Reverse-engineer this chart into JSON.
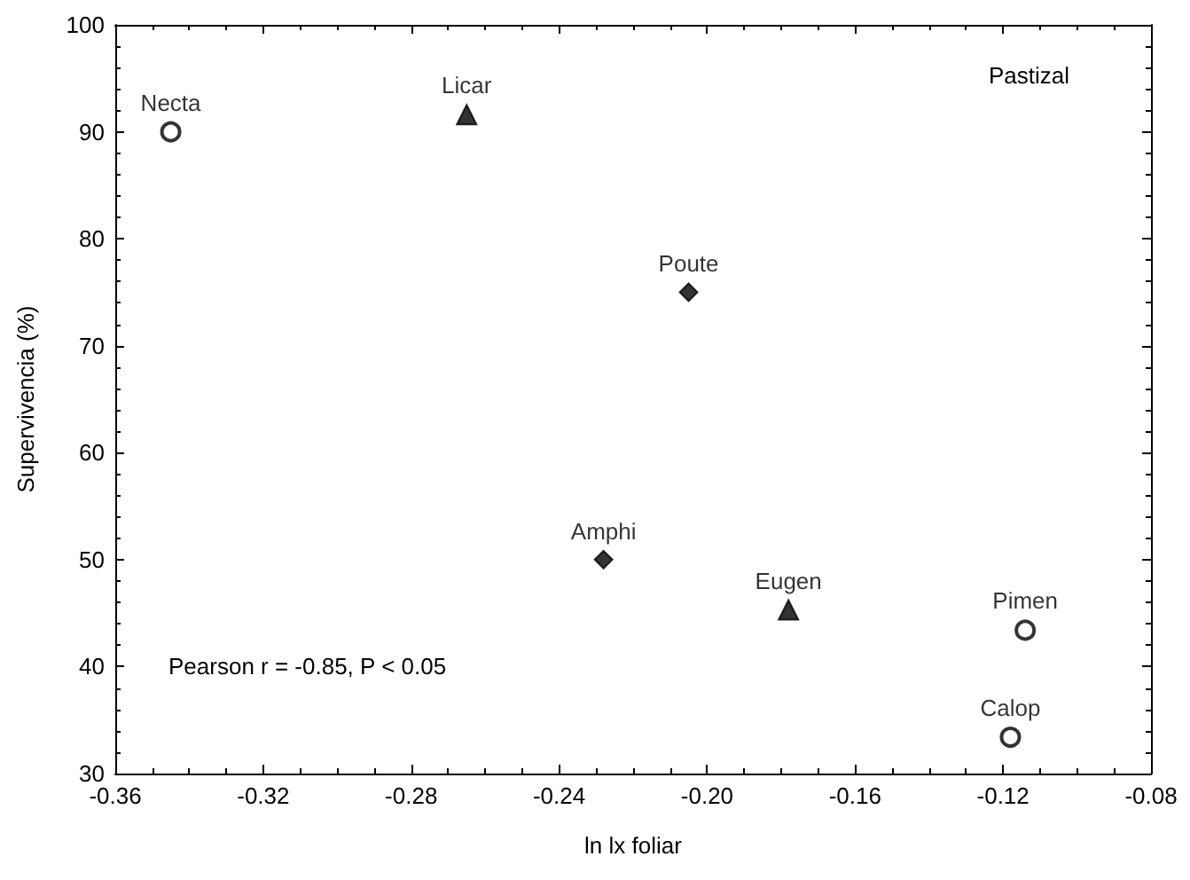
{
  "chart_data": {
    "type": "scatter",
    "xlabel": "ln lx foliar",
    "ylabel": "Supervivencia (%)",
    "annotations": [
      "Pastizal",
      "Pearson r = -0.85, P < 0.05"
    ],
    "series": [
      {
        "marker": "circle",
        "color": "#000000",
        "x": [
          -0.345,
          -0.114,
          -0.118
        ],
        "values": [
          90,
          43.4,
          33.4
        ],
        "value_labels": [
          "Necta",
          "Pimen",
          "Calop"
        ]
      },
      {
        "marker": "triangle",
        "color": "#000000",
        "x": [
          -0.265,
          -0.178
        ],
        "values": [
          91.6,
          45.3
        ],
        "value_labels": [
          "Licar",
          "Eugen"
        ]
      },
      {
        "marker": "diamond",
        "color": "#000000",
        "x": [
          -0.205,
          -0.228
        ],
        "values": [
          75,
          50
        ],
        "value_labels": [
          "Poute",
          "Amphi"
        ]
      }
    ],
    "xlim": [
      -0.36,
      -0.08
    ],
    "xticks": [
      {
        "value": -0.36,
        "label": "-0.36"
      },
      {
        "value": -0.32,
        "label": "-0.32"
      },
      {
        "value": -0.28,
        "label": "-0.28"
      },
      {
        "value": -0.24,
        "label": "-0.24"
      },
      {
        "value": -0.2,
        "label": "-0.20"
      },
      {
        "value": -0.16,
        "label": "-0.16"
      },
      {
        "value": -0.12,
        "label": "-0.12"
      },
      {
        "value": -0.08,
        "label": "-0.08"
      }
    ],
    "ylim": [
      30,
      100
    ],
    "yticks": [
      30,
      40,
      50,
      60,
      70,
      80,
      90,
      100
    ],
    "grid": false
  }
}
